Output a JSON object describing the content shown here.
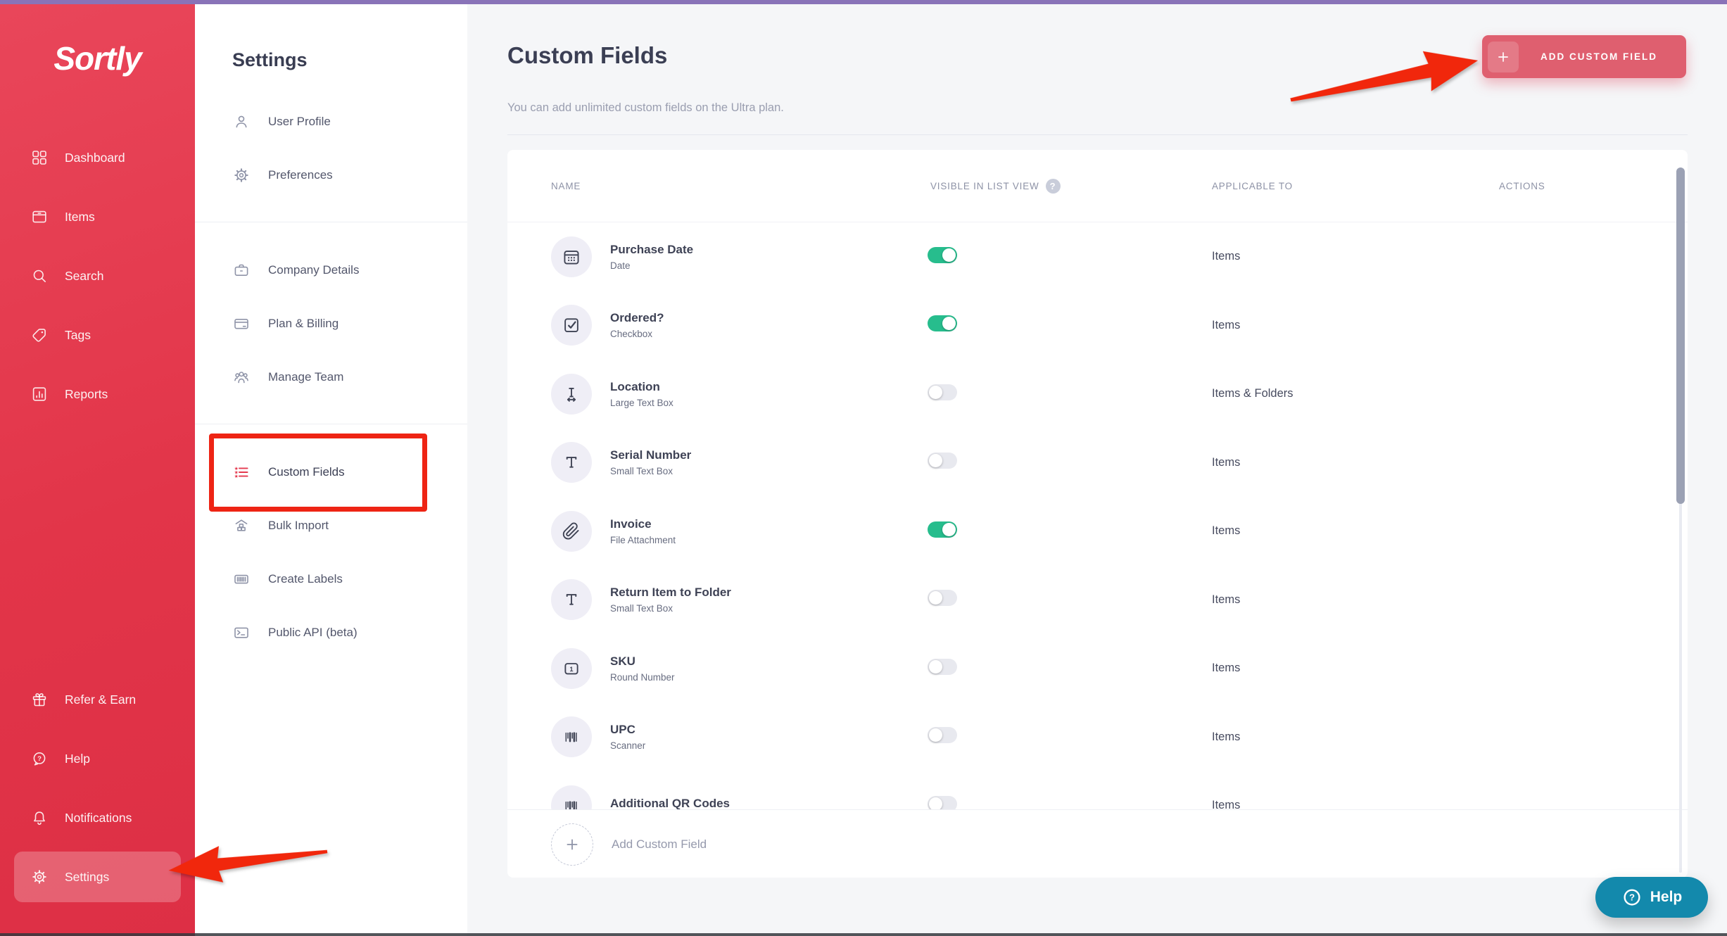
{
  "brand": {
    "logo": "Sortly"
  },
  "colors": {
    "top_strip": "#8973b8",
    "sidebar_red": "#e43549",
    "button_rose": "#df5f6f",
    "toggle_on_green": "#27bd8d",
    "help_teal": "#1389ac",
    "annotation_red": "#ee2414"
  },
  "sidebar": {
    "items": [
      {
        "label": "Dashboard",
        "icon": "dashboard-icon"
      },
      {
        "label": "Items",
        "icon": "items-box-icon"
      },
      {
        "label": "Search",
        "icon": "search-icon"
      },
      {
        "label": "Tags",
        "icon": "tag-icon"
      },
      {
        "label": "Reports",
        "icon": "bar-chart-icon"
      }
    ],
    "bottom_items": [
      {
        "label": "Refer & Earn",
        "icon": "gift-icon"
      },
      {
        "label": "Help",
        "icon": "help-bubble-icon"
      },
      {
        "label": "Notifications",
        "icon": "bell-icon"
      },
      {
        "label": "Settings",
        "icon": "gear-icon",
        "active": true
      }
    ]
  },
  "settings_nav": {
    "title": "Settings",
    "sections": [
      {
        "items": [
          {
            "label": "User Profile",
            "icon": "user-icon"
          },
          {
            "label": "Preferences",
            "icon": "gear-icon"
          }
        ]
      },
      {
        "items": [
          {
            "label": "Company Details",
            "icon": "briefcase-icon"
          },
          {
            "label": "Plan & Billing",
            "icon": "credit-card-icon"
          },
          {
            "label": "Manage Team",
            "icon": "team-icon"
          }
        ]
      },
      {
        "items": [
          {
            "label": "Custom Fields",
            "icon": "custom-fields-list-icon",
            "active": true
          },
          {
            "label": "Bulk Import",
            "icon": "bulk-import-icon"
          },
          {
            "label": "Create Labels",
            "icon": "barcode-frame-icon"
          },
          {
            "label": "Public API (beta)",
            "icon": "terminal-icon"
          }
        ]
      }
    ]
  },
  "main": {
    "title": "Custom Fields",
    "subtitle": "You can add unlimited custom fields on the Ultra plan.",
    "add_button_label": "ADD CUSTOM FIELD"
  },
  "table": {
    "headers": {
      "name": "NAME",
      "visible": "VISIBLE IN LIST VIEW",
      "applicable": "APPLICABLE TO",
      "actions": "ACTIONS"
    },
    "rows": [
      {
        "name": "Purchase Date",
        "type": "Date",
        "icon": "calendar-icon",
        "visible": true,
        "applicable": "Items"
      },
      {
        "name": "Ordered?",
        "type": "Checkbox",
        "icon": "checkbox-icon",
        "visible": true,
        "applicable": "Items"
      },
      {
        "name": "Location",
        "type": "Large Text Box",
        "icon": "text-cursor-icon",
        "visible": false,
        "applicable": "Items & Folders"
      },
      {
        "name": "Serial Number",
        "type": "Small Text Box",
        "icon": "text-t-icon",
        "visible": false,
        "applicable": "Items"
      },
      {
        "name": "Invoice",
        "type": "File Attachment",
        "icon": "paperclip-icon",
        "visible": true,
        "applicable": "Items"
      },
      {
        "name": "Return Item to Folder",
        "type": "Small Text Box",
        "icon": "text-t-icon",
        "visible": false,
        "applicable": "Items"
      },
      {
        "name": "SKU",
        "type": "Round Number",
        "icon": "number-box-icon",
        "visible": false,
        "applicable": "Items"
      },
      {
        "name": "UPC",
        "type": "Scanner",
        "icon": "barcode-icon",
        "visible": false,
        "applicable": "Items"
      },
      {
        "name": "Additional QR Codes",
        "type": "",
        "icon": "barcode-icon",
        "visible": false,
        "applicable": "Items"
      }
    ],
    "footer_label": "Add Custom Field"
  },
  "help_button": {
    "label": "Help"
  }
}
